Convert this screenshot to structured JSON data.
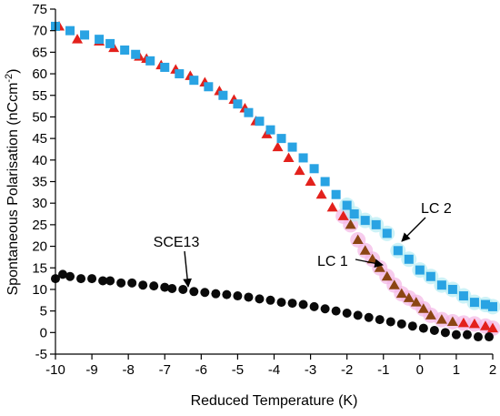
{
  "chart_data": {
    "type": "scatter",
    "xlabel": "Reduced Temperature (K)",
    "ylabel": "Spontaneous Polarisation (nCcm",
    "ylabel_sup": "-2",
    "ylabel_close": ")",
    "xlim": [
      -10,
      2
    ],
    "ylim": [
      -5,
      75
    ],
    "xticks": [
      -10,
      -9,
      -8,
      -7,
      -6,
      -5,
      -4,
      -3,
      -2,
      -1,
      0,
      1,
      2
    ],
    "yticks": [
      -5,
      0,
      5,
      10,
      15,
      20,
      25,
      30,
      35,
      40,
      45,
      50,
      55,
      60,
      65,
      70,
      75
    ],
    "grid": false,
    "series": [
      {
        "name": "LC 1",
        "marker": "triangle",
        "color": "#e3211c",
        "color_near_transition": "#8b4513",
        "glow_color": "#f4b6e6",
        "points": [
          [
            -9.9,
            71
          ],
          [
            -9.4,
            68
          ],
          [
            -8.8,
            67.5
          ],
          [
            -8.4,
            66
          ],
          [
            -7.7,
            64
          ],
          [
            -7.5,
            63.5
          ],
          [
            -7.1,
            62
          ],
          [
            -6.7,
            61
          ],
          [
            -6.3,
            59.5
          ],
          [
            -5.9,
            58
          ],
          [
            -5.5,
            56
          ],
          [
            -5.1,
            54
          ],
          [
            -4.8,
            52
          ],
          [
            -4.5,
            49
          ],
          [
            -4.2,
            46
          ],
          [
            -3.9,
            43
          ],
          [
            -3.6,
            40.5
          ],
          [
            -3.3,
            37.5
          ],
          [
            -3.0,
            35
          ],
          [
            -2.7,
            32
          ],
          [
            -2.4,
            29
          ],
          [
            -2.1,
            27
          ],
          [
            -1.9,
            25
          ],
          [
            -1.7,
            21.5
          ],
          [
            -1.5,
            19
          ],
          [
            -1.3,
            17
          ],
          [
            -1.1,
            15
          ],
          [
            -0.9,
            13
          ],
          [
            -0.7,
            11
          ],
          [
            -0.5,
            9
          ],
          [
            -0.3,
            8
          ],
          [
            -0.1,
            7
          ],
          [
            0.1,
            5.5
          ],
          [
            0.3,
            4
          ],
          [
            0.6,
            3
          ],
          [
            0.9,
            2.5
          ],
          [
            1.2,
            2.2
          ],
          [
            1.5,
            2
          ],
          [
            1.8,
            1.5
          ],
          [
            2.0,
            1
          ]
        ]
      },
      {
        "name": "LC 2",
        "marker": "square",
        "color": "#29a3e3",
        "glow_color": "#b6ecf4",
        "points": [
          [
            -10,
            71
          ],
          [
            -9.6,
            70
          ],
          [
            -9.2,
            69
          ],
          [
            -8.8,
            68
          ],
          [
            -8.5,
            67
          ],
          [
            -8.1,
            65.5
          ],
          [
            -7.8,
            64.5
          ],
          [
            -7.4,
            63
          ],
          [
            -7.0,
            61.5
          ],
          [
            -6.6,
            60
          ],
          [
            -6.2,
            58.5
          ],
          [
            -5.8,
            57
          ],
          [
            -5.4,
            55
          ],
          [
            -5.0,
            53
          ],
          [
            -4.7,
            51
          ],
          [
            -4.4,
            49
          ],
          [
            -4.1,
            47
          ],
          [
            -3.8,
            45
          ],
          [
            -3.5,
            43
          ],
          [
            -3.2,
            40.5
          ],
          [
            -2.9,
            38
          ],
          [
            -2.6,
            35
          ],
          [
            -2.3,
            32
          ],
          [
            -2.0,
            29.5
          ],
          [
            -1.8,
            27.5
          ],
          [
            -1.5,
            26
          ],
          [
            -1.2,
            25
          ],
          [
            -0.9,
            23
          ],
          [
            -0.6,
            19
          ],
          [
            -0.3,
            17
          ],
          [
            0.0,
            14.5
          ],
          [
            0.3,
            13
          ],
          [
            0.6,
            11
          ],
          [
            0.9,
            10
          ],
          [
            1.2,
            8.5
          ],
          [
            1.5,
            7
          ],
          [
            1.8,
            6.5
          ],
          [
            2.0,
            6
          ]
        ]
      },
      {
        "name": "SCE13",
        "marker": "circle",
        "color": "#0a0a0a",
        "points": [
          [
            -10,
            12.5
          ],
          [
            -9.8,
            13.5
          ],
          [
            -9.6,
            13
          ],
          [
            -9.3,
            12.5
          ],
          [
            -9.0,
            12.5
          ],
          [
            -8.7,
            12
          ],
          [
            -8.5,
            12
          ],
          [
            -8.2,
            11.5
          ],
          [
            -7.9,
            11.5
          ],
          [
            -7.6,
            11
          ],
          [
            -7.3,
            10.8
          ],
          [
            -7.0,
            10.5
          ],
          [
            -6.8,
            10.2
          ],
          [
            -6.5,
            10
          ],
          [
            -6.2,
            9.5
          ],
          [
            -5.9,
            9.3
          ],
          [
            -5.6,
            9
          ],
          [
            -5.3,
            8.8
          ],
          [
            -5.0,
            8.5
          ],
          [
            -4.7,
            8.2
          ],
          [
            -4.4,
            7.8
          ],
          [
            -4.1,
            7.5
          ],
          [
            -3.8,
            7
          ],
          [
            -3.5,
            6.8
          ],
          [
            -3.2,
            6.5
          ],
          [
            -2.9,
            6
          ],
          [
            -2.6,
            5.5
          ],
          [
            -2.3,
            5
          ],
          [
            -2.0,
            4.5
          ],
          [
            -1.7,
            4
          ],
          [
            -1.4,
            3.5
          ],
          [
            -1.1,
            3
          ],
          [
            -0.8,
            2.5
          ],
          [
            -0.5,
            2
          ],
          [
            -0.2,
            1.5
          ],
          [
            0.1,
            1
          ],
          [
            0.4,
            0.5
          ],
          [
            0.7,
            0
          ],
          [
            1.0,
            -0.5
          ],
          [
            1.3,
            -0.5
          ],
          [
            1.6,
            -1
          ],
          [
            1.9,
            -1
          ]
        ]
      }
    ],
    "annotations": [
      {
        "text": "SCE13",
        "points_to": [
          -6.4,
          9.8
        ]
      },
      {
        "text": "LC 1",
        "points_to": [
          -1.2,
          16
        ]
      },
      {
        "text": "LC 2",
        "points_to": [
          -0.6,
          19.5
        ]
      }
    ]
  }
}
